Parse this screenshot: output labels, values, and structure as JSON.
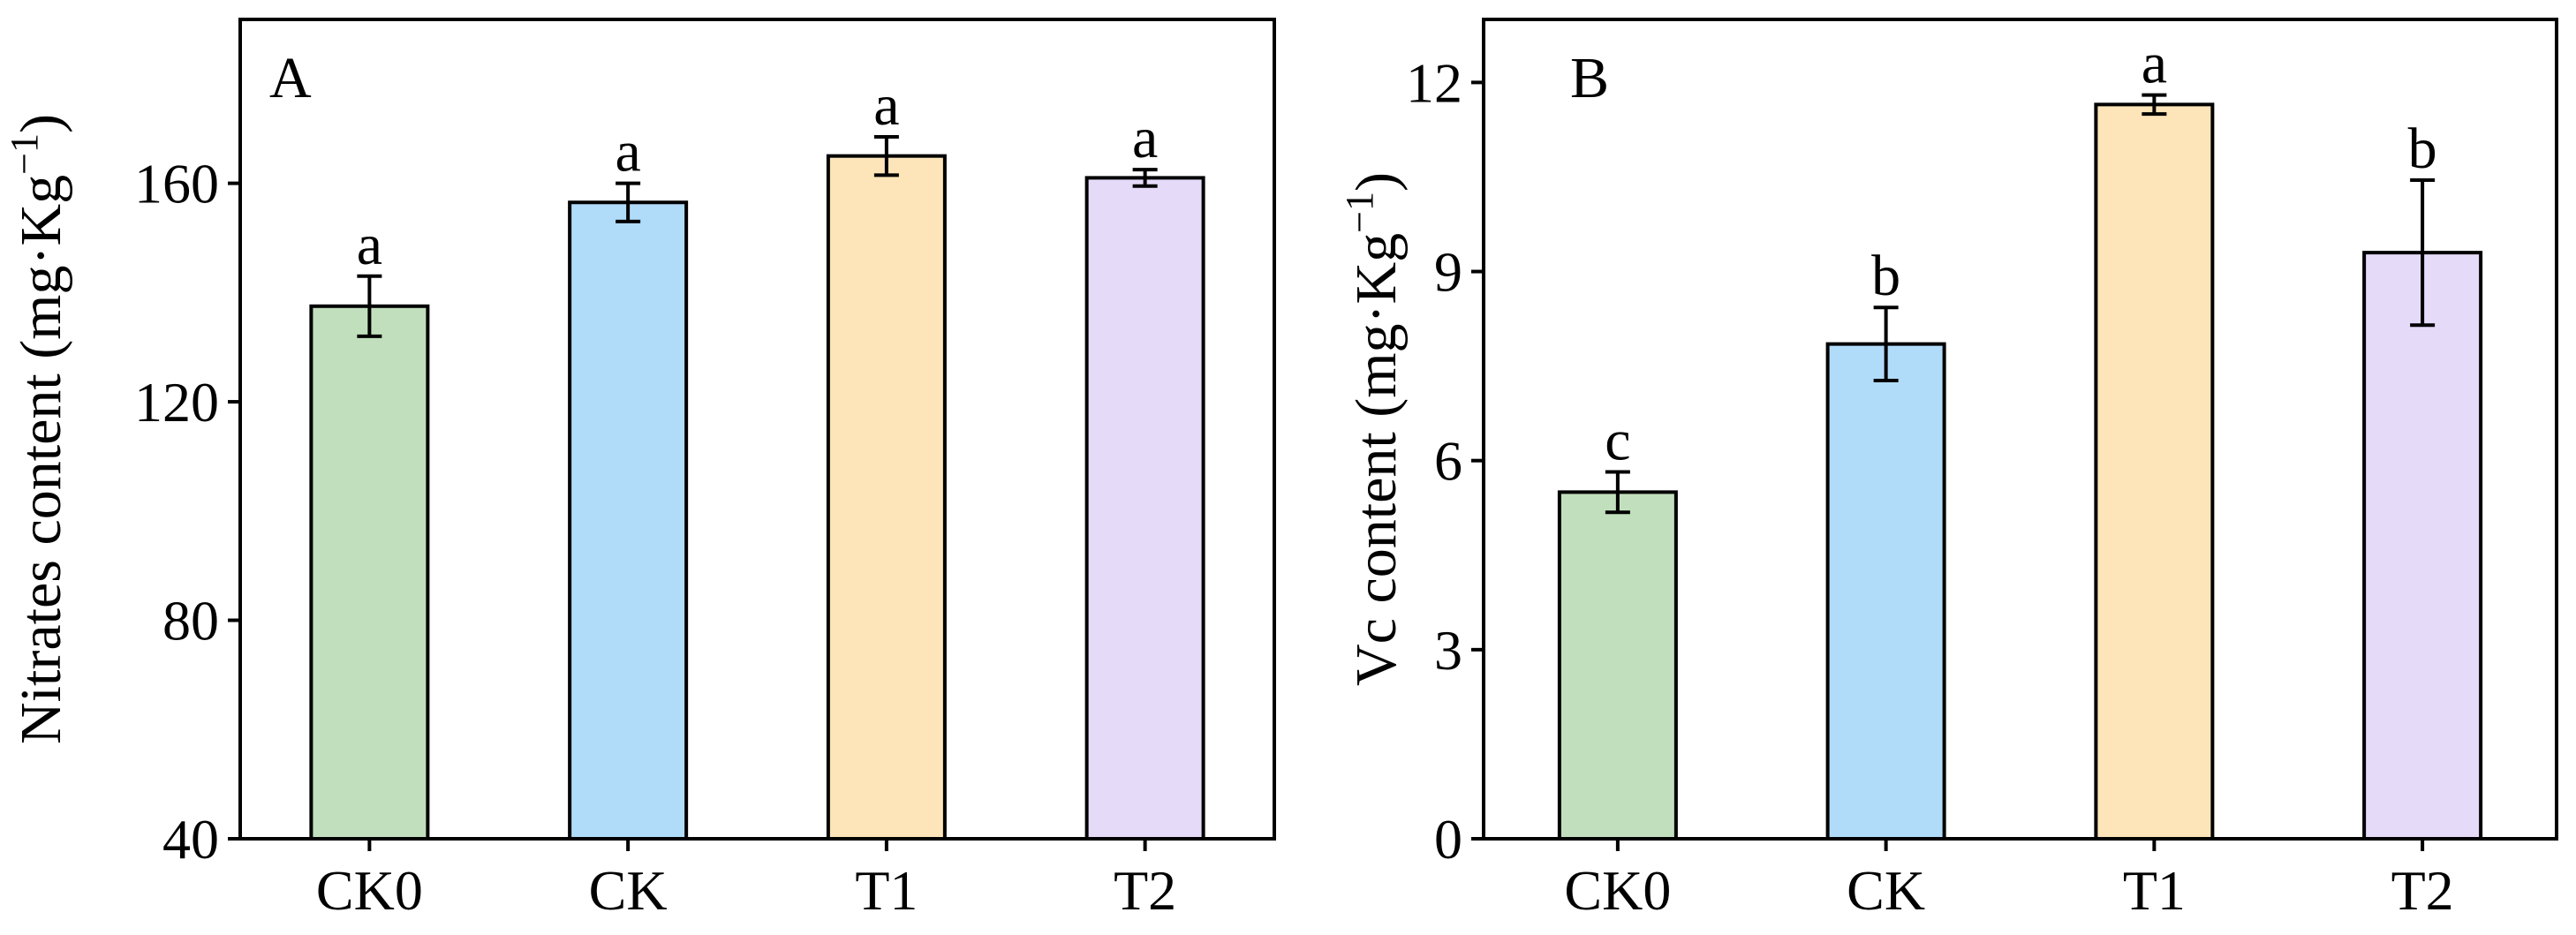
{
  "chart_data": [
    {
      "type": "bar",
      "panel_label": "A",
      "title": "",
      "xlabel": "",
      "ylabel": "Nitrates content (mg·Kg",
      "ylabel_sup": "−1",
      "ylabel_close": ")",
      "categories": [
        "CK0",
        "CK",
        "T1",
        "T2"
      ],
      "values": [
        137.5,
        156.5,
        165,
        161
      ],
      "errors": [
        5.5,
        3.5,
        3.5,
        1.5
      ],
      "significance": [
        "a",
        "a",
        "a",
        "a"
      ],
      "colors": [
        "#c1dfbc",
        "#b0dcfa",
        "#fde5b9",
        "#e5dbf9"
      ],
      "ylim": [
        40,
        190
      ],
      "yticks": [
        40,
        80,
        120,
        160
      ],
      "ytick_labels": [
        "40",
        "80",
        "120",
        "160"
      ]
    },
    {
      "type": "bar",
      "panel_label": "B",
      "title": "",
      "xlabel": "",
      "ylabel": "Vc content (mg·Kg",
      "ylabel_sup": "−1",
      "ylabel_close": ")",
      "categories": [
        "CK0",
        "CK",
        "T1",
        "T2"
      ],
      "values": [
        5.5,
        7.85,
        11.65,
        9.3
      ],
      "errors": [
        0.32,
        0.58,
        0.15,
        1.15
      ],
      "significance": [
        "c",
        "b",
        "a",
        "b"
      ],
      "colors": [
        "#c1dfbc",
        "#b0dcfa",
        "#fde5b9",
        "#e5dbf9"
      ],
      "ylim": [
        0,
        13
      ],
      "yticks": [
        0,
        3,
        6,
        9,
        12
      ],
      "ytick_labels": [
        "0",
        "3",
        "6",
        "9",
        "12"
      ]
    }
  ]
}
